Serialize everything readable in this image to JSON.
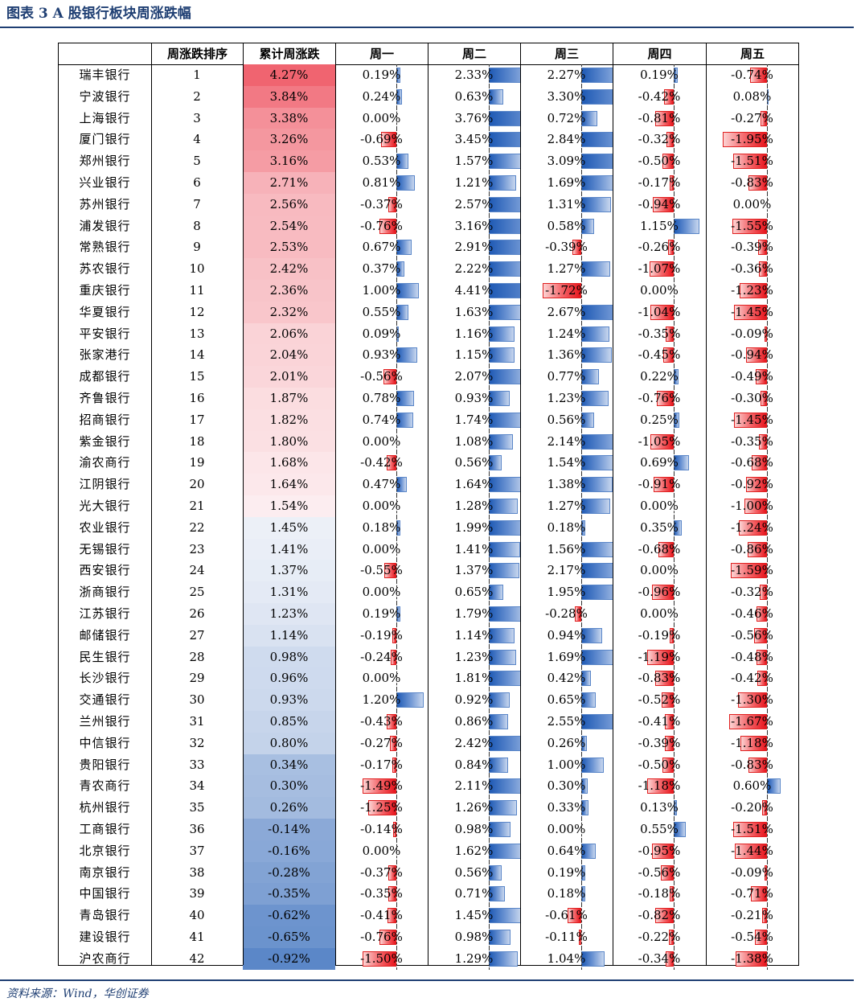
{
  "figure": {
    "title": "图表 3   A 股银行板块周涨跌幅",
    "source": "资料来源：Wind，华创证券"
  },
  "colors": {
    "title": "#1f3f73",
    "positive_bar": "#1f5ab5",
    "negative_bar": "#e8141c",
    "cum_high": "#f06470",
    "cum_low": "#5b87c8"
  },
  "table": {
    "headers": [
      "",
      "周涨跌排序",
      "累计周涨跌",
      "周一",
      "周二",
      "周三",
      "周四",
      "周五"
    ],
    "rows": [
      {
        "name": "瑞丰银行",
        "rank": "1",
        "cum": "4.27%",
        "d": [
          "0.19%",
          "2.33%",
          "2.27%",
          "0.19%",
          "-0.74%"
        ]
      },
      {
        "name": "宁波银行",
        "rank": "2",
        "cum": "3.84%",
        "d": [
          "0.24%",
          "0.63%",
          "3.30%",
          "-0.42%",
          "0.08%"
        ]
      },
      {
        "name": "上海银行",
        "rank": "3",
        "cum": "3.38%",
        "d": [
          "0.00%",
          "3.76%",
          "0.72%",
          "-0.81%",
          "-0.27%"
        ]
      },
      {
        "name": "厦门银行",
        "rank": "4",
        "cum": "3.26%",
        "d": [
          "-0.69%",
          "3.45%",
          "2.84%",
          "-0.32%",
          "-1.95%"
        ]
      },
      {
        "name": "郑州银行",
        "rank": "5",
        "cum": "3.16%",
        "d": [
          "0.53%",
          "1.57%",
          "3.09%",
          "-0.50%",
          "-1.51%"
        ]
      },
      {
        "name": "兴业银行",
        "rank": "6",
        "cum": "2.71%",
        "d": [
          "0.81%",
          "1.21%",
          "1.69%",
          "-0.17%",
          "-0.83%"
        ]
      },
      {
        "name": "苏州银行",
        "rank": "7",
        "cum": "2.56%",
        "d": [
          "-0.37%",
          "2.57%",
          "1.31%",
          "-0.94%",
          "0.00%"
        ]
      },
      {
        "name": "浦发银行",
        "rank": "8",
        "cum": "2.54%",
        "d": [
          "-0.76%",
          "3.16%",
          "0.58%",
          "1.15%",
          "-1.55%"
        ]
      },
      {
        "name": "常熟银行",
        "rank": "9",
        "cum": "2.53%",
        "d": [
          "0.67%",
          "2.91%",
          "-0.39%",
          "-0.26%",
          "-0.39%"
        ]
      },
      {
        "name": "苏农银行",
        "rank": "10",
        "cum": "2.42%",
        "d": [
          "0.37%",
          "2.22%",
          "1.27%",
          "-1.07%",
          "-0.36%"
        ]
      },
      {
        "name": "重庆银行",
        "rank": "11",
        "cum": "2.36%",
        "d": [
          "1.00%",
          "4.41%",
          "-1.72%",
          "0.00%",
          "-1.23%"
        ]
      },
      {
        "name": "华夏银行",
        "rank": "12",
        "cum": "2.32%",
        "d": [
          "0.55%",
          "1.63%",
          "2.67%",
          "-1.04%",
          "-1.45%"
        ]
      },
      {
        "name": "平安银行",
        "rank": "13",
        "cum": "2.06%",
        "d": [
          "0.09%",
          "1.16%",
          "1.24%",
          "-0.35%",
          "-0.09%"
        ]
      },
      {
        "name": "张家港行",
        "rank": "14",
        "cum": "2.04%",
        "d": [
          "0.93%",
          "1.15%",
          "1.36%",
          "-0.45%",
          "-0.94%"
        ]
      },
      {
        "name": "成都银行",
        "rank": "15",
        "cum": "2.01%",
        "d": [
          "-0.56%",
          "2.07%",
          "0.77%",
          "0.22%",
          "-0.49%"
        ]
      },
      {
        "name": "齐鲁银行",
        "rank": "16",
        "cum": "1.87%",
        "d": [
          "0.78%",
          "0.93%",
          "1.23%",
          "-0.76%",
          "-0.30%"
        ]
      },
      {
        "name": "招商银行",
        "rank": "17",
        "cum": "1.82%",
        "d": [
          "0.74%",
          "1.74%",
          "0.56%",
          "0.25%",
          "-1.45%"
        ]
      },
      {
        "name": "紫金银行",
        "rank": "18",
        "cum": "1.80%",
        "d": [
          "0.00%",
          "1.08%",
          "2.14%",
          "-1.05%",
          "-0.35%"
        ]
      },
      {
        "name": "渝农商行",
        "rank": "19",
        "cum": "1.68%",
        "d": [
          "-0.42%",
          "0.56%",
          "1.54%",
          "0.69%",
          "-0.68%"
        ]
      },
      {
        "name": "江阴银行",
        "rank": "20",
        "cum": "1.64%",
        "d": [
          "0.47%",
          "1.64%",
          "1.38%",
          "-0.91%",
          "-0.92%"
        ]
      },
      {
        "name": "光大银行",
        "rank": "21",
        "cum": "1.54%",
        "d": [
          "0.00%",
          "1.28%",
          "1.27%",
          "0.00%",
          "-1.00%"
        ]
      },
      {
        "name": "农业银行",
        "rank": "22",
        "cum": "1.45%",
        "d": [
          "0.18%",
          "1.99%",
          "0.18%",
          "0.35%",
          "-1.24%"
        ]
      },
      {
        "name": "无锡银行",
        "rank": "23",
        "cum": "1.41%",
        "d": [
          "0.00%",
          "1.41%",
          "1.56%",
          "-0.68%",
          "-0.86%"
        ]
      },
      {
        "name": "西安银行",
        "rank": "24",
        "cum": "1.37%",
        "d": [
          "-0.55%",
          "1.37%",
          "2.17%",
          "0.00%",
          "-1.59%"
        ]
      },
      {
        "name": "浙商银行",
        "rank": "25",
        "cum": "1.31%",
        "d": [
          "0.00%",
          "0.65%",
          "1.95%",
          "-0.96%",
          "-0.32%"
        ]
      },
      {
        "name": "江苏银行",
        "rank": "26",
        "cum": "1.23%",
        "d": [
          "0.19%",
          "1.79%",
          "-0.28%",
          "0.00%",
          "-0.46%"
        ]
      },
      {
        "name": "邮储银行",
        "rank": "27",
        "cum": "1.14%",
        "d": [
          "-0.19%",
          "1.14%",
          "0.94%",
          "-0.19%",
          "-0.56%"
        ]
      },
      {
        "name": "民生银行",
        "rank": "28",
        "cum": "0.98%",
        "d": [
          "-0.24%",
          "1.23%",
          "1.69%",
          "-1.19%",
          "-0.48%"
        ]
      },
      {
        "name": "长沙银行",
        "rank": "29",
        "cum": "0.96%",
        "d": [
          "0.00%",
          "1.81%",
          "0.42%",
          "-0.83%",
          "-0.42%"
        ]
      },
      {
        "name": "交通银行",
        "rank": "30",
        "cum": "0.93%",
        "d": [
          "1.20%",
          "0.92%",
          "0.65%",
          "-0.52%",
          "-1.30%"
        ]
      },
      {
        "name": "兰州银行",
        "rank": "31",
        "cum": "0.85%",
        "d": [
          "-0.43%",
          "0.86%",
          "2.55%",
          "-0.41%",
          "-1.67%"
        ]
      },
      {
        "name": "中信银行",
        "rank": "32",
        "cum": "0.80%",
        "d": [
          "-0.27%",
          "2.42%",
          "0.26%",
          "-0.39%",
          "-1.18%"
        ]
      },
      {
        "name": "贵阳银行",
        "rank": "33",
        "cum": "0.34%",
        "d": [
          "-0.17%",
          "0.84%",
          "1.00%",
          "-0.50%",
          "-0.83%"
        ]
      },
      {
        "name": "青农商行",
        "rank": "34",
        "cum": "0.30%",
        "d": [
          "-1.49%",
          "2.11%",
          "0.30%",
          "-1.18%",
          "0.60%"
        ]
      },
      {
        "name": "杭州银行",
        "rank": "35",
        "cum": "0.26%",
        "d": [
          "-1.25%",
          "1.26%",
          "0.33%",
          "0.13%",
          "-0.20%"
        ]
      },
      {
        "name": "工商银行",
        "rank": "36",
        "cum": "-0.14%",
        "d": [
          "-0.14%",
          "0.98%",
          "0.00%",
          "0.55%",
          "-1.51%"
        ]
      },
      {
        "name": "北京银行",
        "rank": "37",
        "cum": "-0.16%",
        "d": [
          "0.00%",
          "1.62%",
          "0.64%",
          "-0.95%",
          "-1.44%"
        ]
      },
      {
        "name": "南京银行",
        "rank": "38",
        "cum": "-0.28%",
        "d": [
          "-0.37%",
          "0.56%",
          "0.19%",
          "-0.56%",
          "-0.09%"
        ]
      },
      {
        "name": "中国银行",
        "rank": "39",
        "cum": "-0.35%",
        "d": [
          "-0.35%",
          "0.71%",
          "0.18%",
          "-0.18%",
          "-0.71%"
        ]
      },
      {
        "name": "青岛银行",
        "rank": "40",
        "cum": "-0.62%",
        "d": [
          "-0.41%",
          "1.45%",
          "-0.61%",
          "-0.82%",
          "-0.21%"
        ]
      },
      {
        "name": "建设银行",
        "rank": "41",
        "cum": "-0.65%",
        "d": [
          "-0.76%",
          "0.98%",
          "-0.11%",
          "-0.22%",
          "-0.54%"
        ]
      },
      {
        "name": "沪农商行",
        "rank": "42",
        "cum": "-0.92%",
        "d": [
          "-1.50%",
          "1.29%",
          "1.04%",
          "-0.34%",
          "-1.38%"
        ]
      }
    ]
  }
}
